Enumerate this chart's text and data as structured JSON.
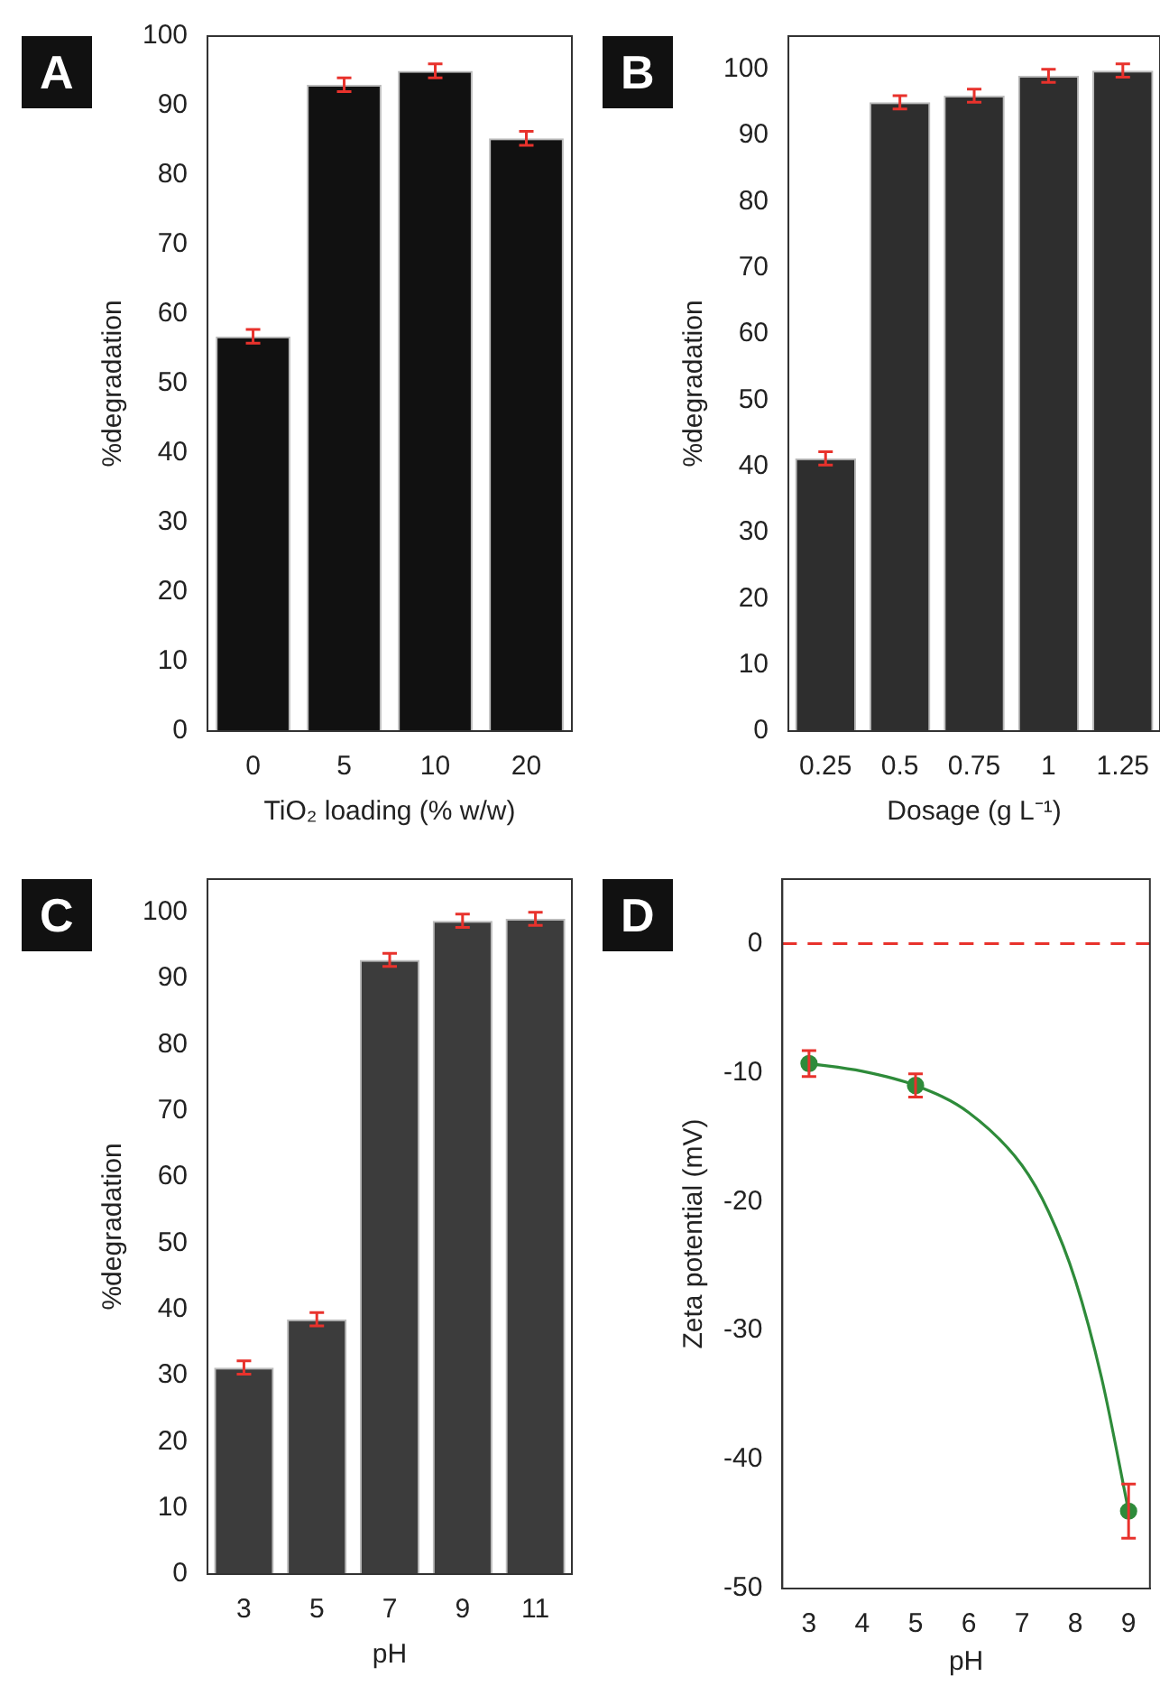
{
  "chart_data": [
    {
      "type": "bar",
      "title": "A",
      "xlabel": "TiO₂ loading (% w/w)",
      "ylabel": "%degradation",
      "categories": [
        "0",
        "5",
        "10",
        "20"
      ],
      "values": [
        56.8,
        93,
        95,
        85.3
      ],
      "errors": [
        1,
        1,
        1,
        1
      ],
      "color": "#111111",
      "ylim": [
        0,
        100
      ],
      "yticks": [
        0,
        10,
        20,
        30,
        40,
        50,
        60,
        70,
        80,
        90,
        100
      ],
      "grid": false,
      "legend": false
    },
    {
      "type": "bar",
      "title": "B",
      "xlabel": "Dosage (g L⁻¹)",
      "ylabel": "%degradation",
      "categories": [
        "0.25",
        "0.5",
        "0.75",
        "1",
        "1.25"
      ],
      "values": [
        41.2,
        95,
        96,
        99,
        99.8
      ],
      "errors": [
        1,
        1,
        1,
        1,
        1
      ],
      "color": "#2e2e2e",
      "ylim": [
        0,
        105
      ],
      "yticks": [
        0,
        10,
        20,
        30,
        40,
        50,
        60,
        70,
        80,
        90,
        100
      ],
      "grid": false,
      "legend": false
    },
    {
      "type": "bar",
      "title": "C",
      "xlabel": "pH",
      "ylabel": "%degradation",
      "categories": [
        "3",
        "5",
        "7",
        "9",
        "11"
      ],
      "values": [
        31.2,
        38.5,
        92.8,
        98.7,
        99
      ],
      "errors": [
        1,
        1,
        1,
        1,
        1
      ],
      "color": "#3c3c3c",
      "ylim": [
        0,
        105
      ],
      "yticks": [
        0,
        10,
        20,
        30,
        40,
        50,
        60,
        70,
        80,
        90,
        100
      ],
      "grid": false,
      "legend": false
    },
    {
      "type": "scatter",
      "title": "D",
      "xlabel": "pH",
      "ylabel": "Zeta potential (mV)",
      "xlim": [
        2.5,
        9.4
      ],
      "xticks": [
        3,
        4,
        5,
        6,
        7,
        8,
        9
      ],
      "ylim": [
        -50,
        5
      ],
      "yticks": [
        -50,
        -40,
        -30,
        -20,
        -10,
        0
      ],
      "grid": false,
      "legend": false,
      "series": [
        {
          "type": "scatter",
          "color": "#2e8b3a",
          "marker": "circle",
          "x": [
            3,
            5,
            9
          ],
          "values": [
            -9.3,
            -11,
            -44
          ],
          "errors": [
            1,
            0.9,
            2.1
          ]
        },
        {
          "type": "line",
          "color": "#2e8b3a",
          "marker": "none",
          "x": [
            3,
            4,
            5,
            6,
            7,
            7.5,
            8,
            8.5,
            9
          ],
          "values": [
            -9.3,
            -9.9,
            -11,
            -13.1,
            -17.2,
            -20.8,
            -26.1,
            -33.8,
            -44
          ]
        }
      ],
      "ref_lines": [
        {
          "axis": "y",
          "value": 0,
          "color": "#e8322c",
          "line_style": "dashed"
        }
      ]
    }
  ]
}
